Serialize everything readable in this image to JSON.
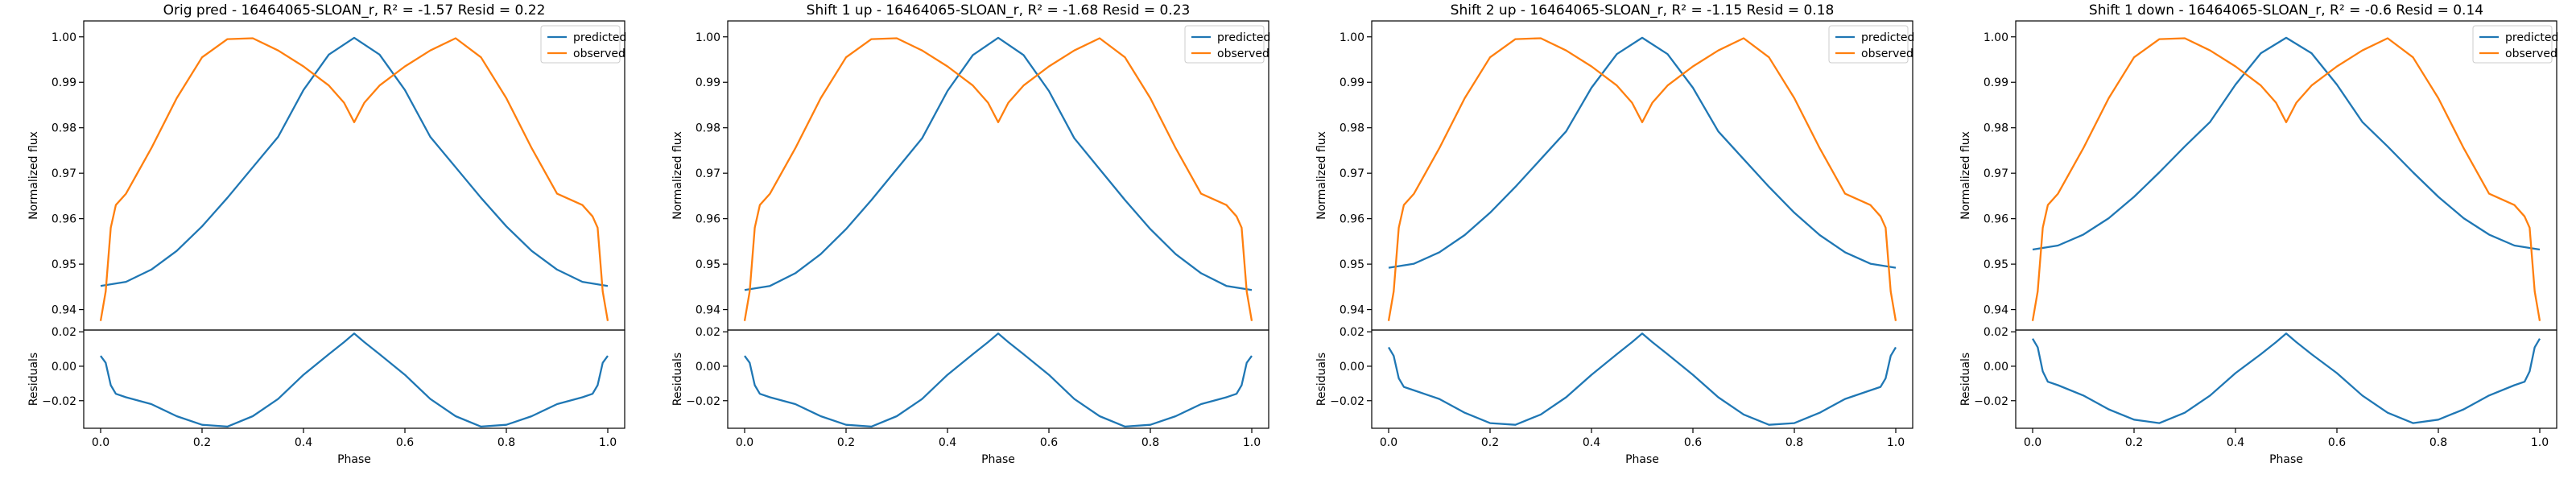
{
  "figure": {
    "panels": [
      {
        "title": "Orig pred - 16464065-SLOAN_r, R² = -1.57 Resid = 0.22"
      },
      {
        "title": "Shift 1 up - 16464065-SLOAN_r, R² = -1.68 Resid = 0.23"
      },
      {
        "title": "Shift 2 up - 16464065-SLOAN_r, R² = -1.15 Resid = 0.18"
      },
      {
        "title": "Shift 1 down - 16464065-SLOAN_r, R² = -0.6 Resid = 0.14"
      }
    ]
  },
  "colors": {
    "predicted": "#1f77b4",
    "observed": "#ff7f0e",
    "residual": "#1f77b4"
  },
  "chart_data": [
    {
      "type": "line",
      "title": "Orig pred - 16464065-SLOAN_r, R² = -1.57 Resid = 0.22",
      "ylabel": "Normalized flux",
      "ylim": [
        0.9355,
        1.0035
      ],
      "yticks": [
        0.94,
        0.95,
        0.96,
        0.97,
        0.98,
        0.99,
        1.0
      ],
      "ytick_labels": [
        "0.94",
        "0.95",
        "0.96",
        "0.97",
        "0.98",
        "0.99",
        "1.00"
      ],
      "legend": [
        "predicted",
        "observed"
      ],
      "legend_loc": "upper right",
      "series": [
        {
          "name": "predicted",
          "x": [
            0,
            0.05,
            0.1,
            0.15,
            0.2,
            0.25,
            0.3,
            0.35,
            0.4,
            0.45,
            0.5,
            0.55,
            0.6,
            0.65,
            0.7,
            0.75,
            0.8,
            0.85,
            0.9,
            0.95,
            1.0
          ],
          "values": [
            0.9452,
            0.9461,
            0.9488,
            0.9529,
            0.9583,
            0.9646,
            0.9713,
            0.978,
            0.9883,
            0.9961,
            0.9998,
            0.9961,
            0.9883,
            0.978,
            0.9713,
            0.9646,
            0.9583,
            0.9529,
            0.9488,
            0.9461,
            0.9452
          ]
        },
        {
          "name": "observed",
          "x": [
            0,
            0.01,
            0.02,
            0.03,
            0.05,
            0.1,
            0.15,
            0.2,
            0.25,
            0.3,
            0.35,
            0.4,
            0.45,
            0.48,
            0.5,
            0.52,
            0.55,
            0.6,
            0.65,
            0.7,
            0.75,
            0.8,
            0.85,
            0.9,
            0.95,
            0.97,
            0.98,
            0.99,
            1.0
          ],
          "values": [
            0.9375,
            0.944,
            0.958,
            0.963,
            0.9655,
            0.9755,
            0.9865,
            0.9955,
            0.9995,
            0.9997,
            0.997,
            0.9935,
            0.9893,
            0.9855,
            0.9812,
            0.9855,
            0.9893,
            0.9935,
            0.997,
            0.9997,
            0.9955,
            0.9865,
            0.9755,
            0.9655,
            0.963,
            0.9605,
            0.958,
            0.944,
            0.9375
          ]
        }
      ],
      "residuals": {
        "ylabel": "Residuals",
        "xlabel": "Phase",
        "ylim": [
          -0.036,
          0.021
        ],
        "yticks": [
          -0.02,
          0.0,
          0.02
        ],
        "ytick_labels": [
          "−0.02",
          "0.00",
          "0.02"
        ],
        "xticks": [
          0.0,
          0.2,
          0.4,
          0.6,
          0.8,
          1.0
        ],
        "xtick_labels": [
          "0.0",
          "0.2",
          "0.4",
          "0.6",
          "0.8",
          "1.0"
        ],
        "x": [
          0,
          0.01,
          0.02,
          0.03,
          0.05,
          0.1,
          0.15,
          0.2,
          0.25,
          0.3,
          0.35,
          0.4,
          0.45,
          0.48,
          0.5,
          0.52,
          0.55,
          0.6,
          0.65,
          0.7,
          0.75,
          0.8,
          0.85,
          0.9,
          0.95,
          0.97,
          0.98,
          0.99,
          1.0
        ],
        "values": [
          0.006,
          0.002,
          -0.011,
          -0.016,
          -0.018,
          -0.022,
          -0.029,
          -0.034,
          -0.035,
          -0.029,
          -0.019,
          -0.005,
          0.007,
          0.014,
          0.019,
          0.014,
          0.007,
          -0.005,
          -0.019,
          -0.029,
          -0.035,
          -0.034,
          -0.029,
          -0.022,
          -0.018,
          -0.016,
          -0.011,
          0.002,
          0.006
        ]
      }
    },
    {
      "type": "line",
      "title": "Shift 1 up - 16464065-SLOAN_r, R² = -1.68 Resid = 0.23",
      "ylabel": "Normalized flux",
      "ylim": [
        0.9355,
        1.0035
      ],
      "yticks": [
        0.94,
        0.95,
        0.96,
        0.97,
        0.98,
        0.99,
        1.0
      ],
      "ytick_labels": [
        "0.94",
        "0.95",
        "0.96",
        "0.97",
        "0.98",
        "0.99",
        "1.00"
      ],
      "legend": [
        "predicted",
        "observed"
      ],
      "legend_loc": "upper right",
      "series": [
        {
          "name": "predicted",
          "x": [
            0,
            0.05,
            0.1,
            0.15,
            0.2,
            0.25,
            0.3,
            0.35,
            0.4,
            0.45,
            0.5,
            0.55,
            0.6,
            0.65,
            0.7,
            0.75,
            0.8,
            0.85,
            0.9,
            0.95,
            1.0
          ],
          "values": [
            0.9443,
            0.9452,
            0.948,
            0.9522,
            0.9577,
            0.9641,
            0.9709,
            0.9777,
            0.9881,
            0.996,
            0.9998,
            0.996,
            0.9881,
            0.9777,
            0.9709,
            0.9641,
            0.9577,
            0.9522,
            0.948,
            0.9452,
            0.9443
          ]
        },
        {
          "name": "observed",
          "x": [
            0,
            0.01,
            0.02,
            0.03,
            0.05,
            0.1,
            0.15,
            0.2,
            0.25,
            0.3,
            0.35,
            0.4,
            0.45,
            0.48,
            0.5,
            0.52,
            0.55,
            0.6,
            0.65,
            0.7,
            0.75,
            0.8,
            0.85,
            0.9,
            0.95,
            0.97,
            0.98,
            0.99,
            1.0
          ],
          "values": [
            0.9375,
            0.944,
            0.958,
            0.963,
            0.9655,
            0.9755,
            0.9865,
            0.9955,
            0.9995,
            0.9997,
            0.997,
            0.9935,
            0.9893,
            0.9855,
            0.9812,
            0.9855,
            0.9893,
            0.9935,
            0.997,
            0.9997,
            0.9955,
            0.9865,
            0.9755,
            0.9655,
            0.963,
            0.9605,
            0.958,
            0.944,
            0.9375
          ]
        }
      ],
      "residuals": {
        "ylabel": "Residuals",
        "xlabel": "Phase",
        "ylim": [
          -0.036,
          0.021
        ],
        "yticks": [
          -0.02,
          0.0,
          0.02
        ],
        "ytick_labels": [
          "−0.02",
          "0.00",
          "0.02"
        ],
        "xticks": [
          0.0,
          0.2,
          0.4,
          0.6,
          0.8,
          1.0
        ],
        "xtick_labels": [
          "0.0",
          "0.2",
          "0.4",
          "0.6",
          "0.8",
          "1.0"
        ],
        "x": [
          0,
          0.01,
          0.02,
          0.03,
          0.05,
          0.1,
          0.15,
          0.2,
          0.25,
          0.3,
          0.35,
          0.4,
          0.45,
          0.48,
          0.5,
          0.52,
          0.55,
          0.6,
          0.65,
          0.7,
          0.75,
          0.8,
          0.85,
          0.9,
          0.95,
          0.97,
          0.98,
          0.99,
          1.0
        ],
        "values": [
          0.006,
          0.002,
          -0.011,
          -0.016,
          -0.018,
          -0.022,
          -0.029,
          -0.034,
          -0.035,
          -0.029,
          -0.019,
          -0.005,
          0.007,
          0.014,
          0.019,
          0.014,
          0.007,
          -0.005,
          -0.019,
          -0.029,
          -0.035,
          -0.034,
          -0.029,
          -0.022,
          -0.018,
          -0.016,
          -0.011,
          0.002,
          0.006
        ]
      }
    },
    {
      "type": "line",
      "title": "Shift 2 up - 16464065-SLOAN_r, R² = -1.15 Resid = 0.18",
      "ylabel": "Normalized flux",
      "ylim": [
        0.9355,
        1.0035
      ],
      "yticks": [
        0.94,
        0.95,
        0.96,
        0.97,
        0.98,
        0.99,
        1.0
      ],
      "ytick_labels": [
        "0.94",
        "0.95",
        "0.96",
        "0.97",
        "0.98",
        "0.99",
        "1.00"
      ],
      "legend": [
        "predicted",
        "observed"
      ],
      "legend_loc": "upper right",
      "series": [
        {
          "name": "predicted",
          "x": [
            0,
            0.05,
            0.1,
            0.15,
            0.2,
            0.25,
            0.3,
            0.35,
            0.4,
            0.45,
            0.5,
            0.55,
            0.6,
            0.65,
            0.7,
            0.75,
            0.8,
            0.85,
            0.9,
            0.95,
            1.0
          ],
          "values": [
            0.9492,
            0.9501,
            0.9526,
            0.9564,
            0.9613,
            0.967,
            0.9731,
            0.9792,
            0.9888,
            0.9962,
            0.9998,
            0.9962,
            0.9888,
            0.9792,
            0.9731,
            0.967,
            0.9613,
            0.9564,
            0.9526,
            0.9501,
            0.9492
          ]
        },
        {
          "name": "observed",
          "x": [
            0,
            0.01,
            0.02,
            0.03,
            0.05,
            0.1,
            0.15,
            0.2,
            0.25,
            0.3,
            0.35,
            0.4,
            0.45,
            0.48,
            0.5,
            0.52,
            0.55,
            0.6,
            0.65,
            0.7,
            0.75,
            0.8,
            0.85,
            0.9,
            0.95,
            0.97,
            0.98,
            0.99,
            1.0
          ],
          "values": [
            0.9375,
            0.944,
            0.958,
            0.963,
            0.9655,
            0.9755,
            0.9865,
            0.9955,
            0.9995,
            0.9997,
            0.997,
            0.9935,
            0.9893,
            0.9855,
            0.9812,
            0.9855,
            0.9893,
            0.9935,
            0.997,
            0.9997,
            0.9955,
            0.9865,
            0.9755,
            0.9655,
            0.963,
            0.9605,
            0.958,
            0.944,
            0.9375
          ]
        }
      ],
      "residuals": {
        "ylabel": "Residuals",
        "xlabel": "Phase",
        "ylim": [
          -0.036,
          0.021
        ],
        "yticks": [
          -0.02,
          0.0,
          0.02
        ],
        "ytick_labels": [
          "−0.02",
          "0.00",
          "0.02"
        ],
        "xticks": [
          0.0,
          0.2,
          0.4,
          0.6,
          0.8,
          1.0
        ],
        "xtick_labels": [
          "0.0",
          "0.2",
          "0.4",
          "0.6",
          "0.8",
          "1.0"
        ],
        "x": [
          0,
          0.01,
          0.02,
          0.03,
          0.05,
          0.1,
          0.15,
          0.2,
          0.25,
          0.3,
          0.35,
          0.4,
          0.45,
          0.48,
          0.5,
          0.52,
          0.55,
          0.6,
          0.65,
          0.7,
          0.75,
          0.8,
          0.85,
          0.9,
          0.95,
          0.97,
          0.98,
          0.99,
          1.0
        ],
        "values": [
          0.011,
          0.006,
          -0.007,
          -0.012,
          -0.014,
          -0.019,
          -0.027,
          -0.033,
          -0.034,
          -0.028,
          -0.018,
          -0.005,
          0.007,
          0.014,
          0.019,
          0.014,
          0.007,
          -0.005,
          -0.018,
          -0.028,
          -0.034,
          -0.033,
          -0.027,
          -0.019,
          -0.014,
          -0.012,
          -0.007,
          0.006,
          0.011
        ]
      }
    },
    {
      "type": "line",
      "title": "Shift 1 down - 16464065-SLOAN_r, R² = -0.6 Resid = 0.14",
      "ylabel": "Normalized flux",
      "ylim": [
        0.9355,
        1.0035
      ],
      "yticks": [
        0.94,
        0.95,
        0.96,
        0.97,
        0.98,
        0.99,
        1.0
      ],
      "ytick_labels": [
        "0.94",
        "0.95",
        "0.96",
        "0.97",
        "0.98",
        "0.99",
        "1.00"
      ],
      "legend": [
        "predicted",
        "observed"
      ],
      "legend_loc": "upper right",
      "series": [
        {
          "name": "predicted",
          "x": [
            0,
            0.05,
            0.1,
            0.15,
            0.2,
            0.25,
            0.3,
            0.35,
            0.4,
            0.45,
            0.5,
            0.55,
            0.6,
            0.65,
            0.7,
            0.75,
            0.8,
            0.85,
            0.9,
            0.95,
            1.0
          ],
          "values": [
            0.9532,
            0.9541,
            0.9565,
            0.9601,
            0.9648,
            0.9702,
            0.9759,
            0.9813,
            0.9895,
            0.9964,
            0.9998,
            0.9964,
            0.9895,
            0.9813,
            0.9759,
            0.9702,
            0.9648,
            0.9601,
            0.9565,
            0.9541,
            0.9532
          ]
        },
        {
          "name": "observed",
          "x": [
            0,
            0.01,
            0.02,
            0.03,
            0.05,
            0.1,
            0.15,
            0.2,
            0.25,
            0.3,
            0.35,
            0.4,
            0.45,
            0.48,
            0.5,
            0.52,
            0.55,
            0.6,
            0.65,
            0.7,
            0.75,
            0.8,
            0.85,
            0.9,
            0.95,
            0.97,
            0.98,
            0.99,
            1.0
          ],
          "values": [
            0.9375,
            0.944,
            0.958,
            0.963,
            0.9655,
            0.9755,
            0.9865,
            0.9955,
            0.9995,
            0.9997,
            0.997,
            0.9935,
            0.9893,
            0.9855,
            0.9812,
            0.9855,
            0.9893,
            0.9935,
            0.997,
            0.9997,
            0.9955,
            0.9865,
            0.9755,
            0.9655,
            0.963,
            0.9605,
            0.958,
            0.944,
            0.9375
          ]
        }
      ],
      "residuals": {
        "ylabel": "Residuals",
        "xlabel": "Phase",
        "ylim": [
          -0.036,
          0.021
        ],
        "yticks": [
          -0.02,
          0.0,
          0.02
        ],
        "ytick_labels": [
          "−0.02",
          "0.00",
          "0.02"
        ],
        "xticks": [
          0.0,
          0.2,
          0.4,
          0.6,
          0.8,
          1.0
        ],
        "xtick_labels": [
          "0.0",
          "0.2",
          "0.4",
          "0.6",
          "0.8",
          "1.0"
        ],
        "x": [
          0,
          0.01,
          0.02,
          0.03,
          0.05,
          0.1,
          0.15,
          0.2,
          0.25,
          0.3,
          0.35,
          0.4,
          0.45,
          0.48,
          0.5,
          0.52,
          0.55,
          0.6,
          0.65,
          0.7,
          0.75,
          0.8,
          0.85,
          0.9,
          0.95,
          0.97,
          0.98,
          0.99,
          1.0
        ],
        "values": [
          0.016,
          0.011,
          -0.003,
          -0.009,
          -0.011,
          -0.017,
          -0.025,
          -0.031,
          -0.033,
          -0.027,
          -0.017,
          -0.004,
          0.007,
          0.014,
          0.019,
          0.014,
          0.007,
          -0.004,
          -0.017,
          -0.027,
          -0.033,
          -0.031,
          -0.025,
          -0.017,
          -0.011,
          -0.009,
          -0.003,
          0.011,
          0.016
        ]
      }
    }
  ]
}
